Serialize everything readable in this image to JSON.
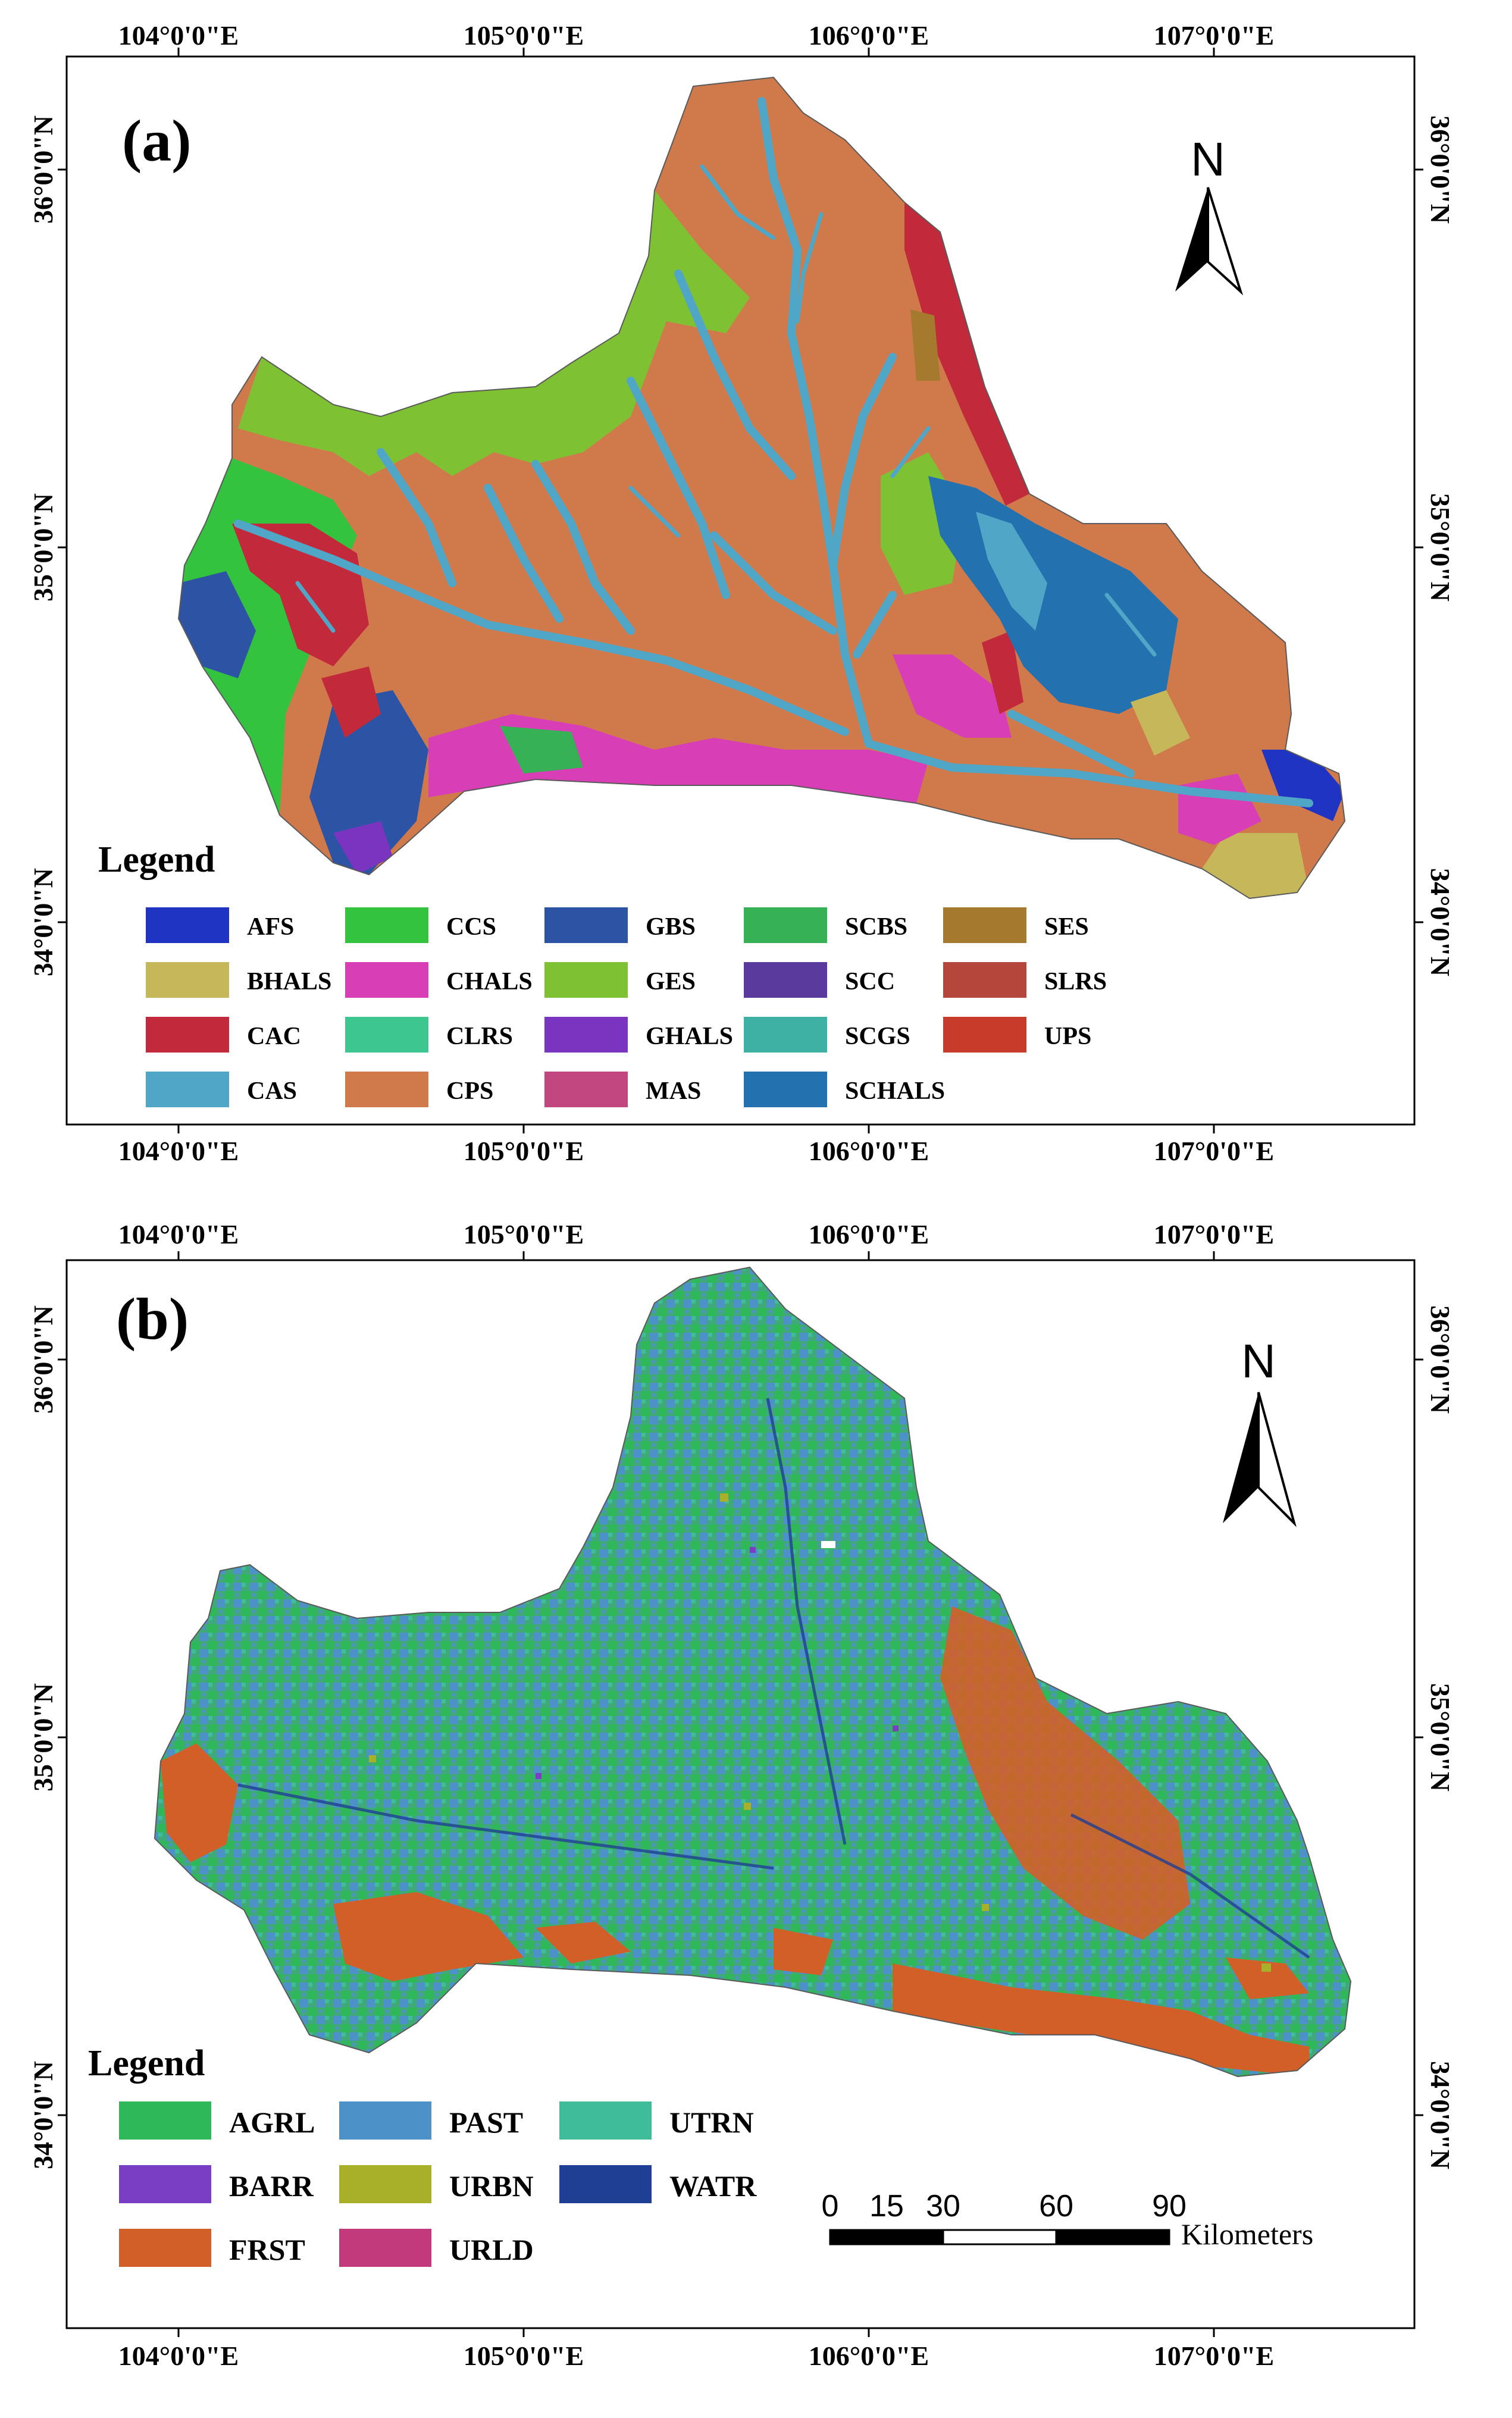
{
  "panels": [
    {
      "label": "(a)",
      "legend_title": "Legend",
      "north": "N",
      "lon_labels": [
        "104°0'0\"E",
        "105°0'0\"E",
        "106°0'0\"E",
        "107°0'0\"E"
      ],
      "lat_labels": [
        "36°0'0\"N",
        "35°0'0\"N",
        "34°0'0\"N"
      ],
      "legend": [
        {
          "code": "AFS",
          "color": "#1f34c2"
        },
        {
          "code": "BHALS",
          "color": "#c6b85a"
        },
        {
          "code": "CAC",
          "color": "#c22a3c"
        },
        {
          "code": "CAS",
          "color": "#4fa6c6"
        },
        {
          "code": "CCS",
          "color": "#33c33f"
        },
        {
          "code": "CHALS",
          "color": "#d83fb7"
        },
        {
          "code": "CLRS",
          "color": "#3dc690"
        },
        {
          "code": "CPS",
          "color": "#d07a4c"
        },
        {
          "code": "GBS",
          "color": "#2d54a4"
        },
        {
          "code": "GES",
          "color": "#7ec234"
        },
        {
          "code": "GHALS",
          "color": "#7b34c0"
        },
        {
          "code": "MAS",
          "color": "#c24680"
        },
        {
          "code": "SCBS",
          "color": "#37b155"
        },
        {
          "code": "SCC",
          "color": "#5b3a9e"
        },
        {
          "code": "SCGS",
          "color": "#3fb0a4"
        },
        {
          "code": "SCHALS",
          "color": "#2471b0"
        },
        {
          "code": "SES",
          "color": "#a57a2e"
        },
        {
          "code": "SLRS",
          "color": "#b4463c"
        },
        {
          "code": "UPS",
          "color": "#c83a2a"
        }
      ]
    },
    {
      "label": "(b)",
      "legend_title": "Legend",
      "north": "N",
      "lon_labels": [
        "104°0'0\"E",
        "105°0'0\"E",
        "106°0'0\"E",
        "107°0'0\"E"
      ],
      "lat_labels": [
        "36°0'0\"N",
        "35°0'0\"N",
        "34°0'0\"N"
      ],
      "legend": [
        {
          "code": "AGRL",
          "color": "#2fb85a"
        },
        {
          "code": "BARR",
          "color": "#7a3ec4"
        },
        {
          "code": "FRST",
          "color": "#d35f28"
        },
        {
          "code": "PAST",
          "color": "#4c92c8"
        },
        {
          "code": "URBN",
          "color": "#a8b02a"
        },
        {
          "code": "URLD",
          "color": "#c23a7c"
        },
        {
          "code": "UTRN",
          "color": "#3fbc9a"
        },
        {
          "code": "WATR",
          "color": "#1f3f94"
        }
      ],
      "scale_bar": {
        "ticks": [
          "0",
          "15",
          "30",
          "60",
          "90"
        ],
        "unit": "Kilometers"
      }
    }
  ]
}
